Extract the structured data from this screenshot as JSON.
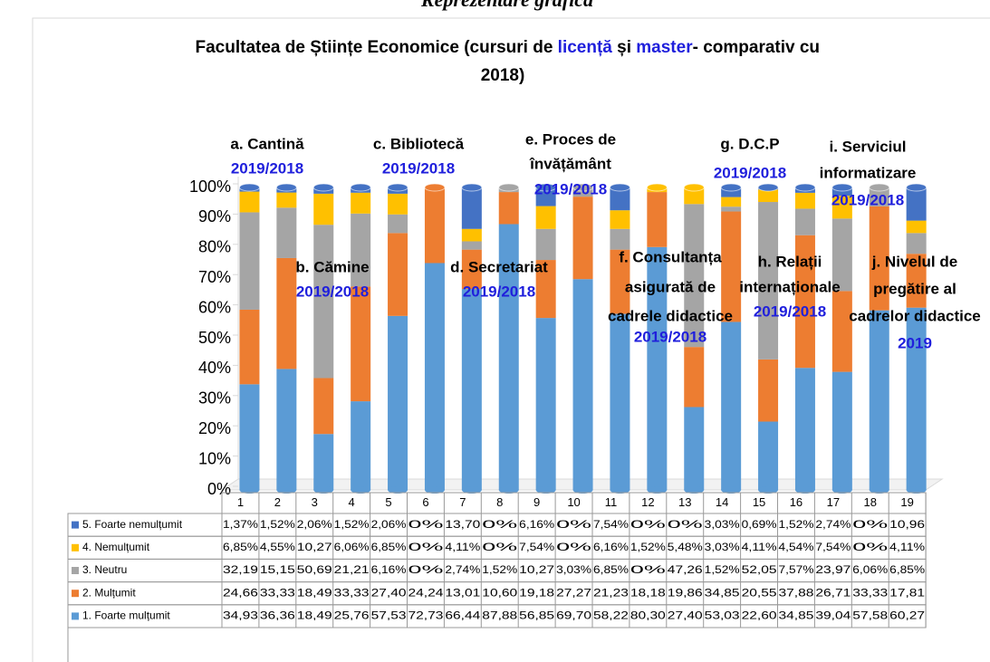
{
  "header": "Reprezentare grafică",
  "chart_data": {
    "type": "bar",
    "stacked": "percent",
    "title": [
      "Facultatea de Științe Economice (cursuri de ",
      "licență",
      " și ",
      "master",
      "- comparativ cu",
      "2018)"
    ],
    "categories": [
      "1",
      "2",
      "3",
      "4",
      "5",
      "6",
      "7",
      "8",
      "9",
      "10",
      "11",
      "12",
      "13",
      "14",
      "15",
      "16",
      "17",
      "18",
      "19"
    ],
    "ylim": [
      0,
      100
    ],
    "yticks": [
      {
        "value": 0,
        "label": "0%"
      },
      {
        "value": 10,
        "label": "10%"
      },
      {
        "value": 20,
        "label": "20%"
      },
      {
        "value": 30,
        "label": "30%"
      },
      {
        "value": 40,
        "label": "40%"
      },
      {
        "value": 50,
        "label": "50%"
      },
      {
        "value": 60,
        "label": "60%"
      },
      {
        "value": 70,
        "label": "70%"
      },
      {
        "value": 80,
        "label": "80%"
      },
      {
        "value": 90,
        "label": "90%"
      },
      {
        "value": 100,
        "label": "100%"
      }
    ],
    "series": [
      {
        "name": "1. Foarte mulțumit",
        "color": "#5b9bd5",
        "values": [
          34.93,
          36.36,
          18.49,
          25.76,
          57.53,
          72.73,
          66.44,
          87.88,
          56.85,
          69.7,
          58.22,
          80.3,
          27.4,
          53.03,
          22.6,
          34.85,
          39.04,
          57.58,
          60.27
        ],
        "value_labels": [
          "34,93",
          "36,36",
          "18,49",
          "25,76",
          "57,53",
          "72,73",
          "66,44",
          "87,88",
          "56,85",
          "69,70",
          "58,22",
          "80,30",
          "27,40",
          "53,03",
          "22,60",
          "34,85",
          "39,04",
          "57,58",
          "60,27"
        ]
      },
      {
        "name": "2. Mulțumit",
        "color": "#ed7d31",
        "values": [
          24.66,
          33.33,
          18.49,
          33.33,
          27.4,
          24.24,
          13.01,
          10.6,
          19.18,
          27.27,
          21.23,
          18.18,
          19.86,
          34.85,
          20.55,
          37.88,
          26.71,
          33.33,
          17.81
        ],
        "value_labels": [
          "24,66",
          "33,33",
          "18,49",
          "33,33",
          "27,40",
          "24,24",
          "13,01",
          "10,60",
          "19,18",
          "27,27",
          "21,23",
          "18,18",
          "19,86",
          "34,85",
          "20,55",
          "37,88",
          "26,71",
          "33,33",
          "17,81"
        ]
      },
      {
        "name": "3. Neutru",
        "color": "#a5a5a5",
        "values": [
          32.19,
          15.15,
          50.69,
          21.21,
          6.16,
          0,
          2.74,
          1.52,
          10.27,
          3.03,
          6.85,
          0,
          47.26,
          1.52,
          52.05,
          7.57,
          23.97,
          6.06,
          6.85
        ],
        "value_labels": [
          "32,19",
          "15,15",
          "50,69",
          "21,21",
          "6,16%",
          "0%",
          "2,74%",
          "1,52%",
          "10,27",
          "3,03%",
          "6,85%",
          "0%",
          "47,26",
          "1,52%",
          "52,05",
          "7,57%",
          "23,97",
          "6,06%",
          "6,85%"
        ]
      },
      {
        "name": "4. Nemulțumit",
        "color": "#ffc000",
        "values": [
          6.85,
          4.55,
          10.27,
          6.06,
          6.85,
          0,
          4.11,
          0,
          7.54,
          0,
          6.16,
          1.52,
          5.48,
          3.03,
          4.11,
          4.54,
          7.54,
          0,
          4.11
        ],
        "value_labels": [
          "6,85%",
          "4,55%",
          "10,27",
          "6,06%",
          "6,85%",
          "0%",
          "4,11%",
          "0%",
          "7,54%",
          "0%",
          "6,16%",
          "1,52%",
          "5,48%",
          "3,03%",
          "4,11%",
          "4,54%",
          "7,54%",
          "0%",
          "4,11%"
        ]
      },
      {
        "name": "5. Foarte nemulțumit",
        "color": "#4472c4",
        "values": [
          1.37,
          1.52,
          2.06,
          1.52,
          2.06,
          0,
          13.7,
          0,
          6.16,
          0,
          7.54,
          0,
          0,
          3.03,
          0.69,
          1.52,
          2.74,
          0,
          10.96
        ],
        "value_labels": [
          "1,37%",
          "1,52%",
          "2,06%",
          "1,52%",
          "2,06%",
          "0%",
          "13,70",
          "0%",
          "6,16%",
          "0%",
          "7,54%",
          "0%",
          "0%",
          "3,03%",
          "0,69%",
          "1,52%",
          "2,74%",
          "0%",
          "10,96"
        ]
      }
    ],
    "annotations": [
      {
        "lines": [
          "a. Cantină"
        ],
        "period": "2019/2018"
      },
      {
        "lines": [
          "b. Cămine"
        ],
        "period": "2019/2018"
      },
      {
        "lines": [
          "c. Bibliotecă"
        ],
        "period": "2019/2018"
      },
      {
        "lines": [
          "d. Secretariat"
        ],
        "period": "2019/2018"
      },
      {
        "lines": [
          "e. Proces de",
          "învățământ"
        ],
        "period": "2019/2018"
      },
      {
        "lines": [
          "f. Consultanța",
          "asigurată de",
          "cadrele didactice"
        ],
        "period": "2019/2018"
      },
      {
        "lines": [
          "g. D.C.P"
        ],
        "period": "2019/2018"
      },
      {
        "lines": [
          "h. Relații",
          "internaționale"
        ],
        "period": "2019/2018"
      },
      {
        "lines": [
          "i. Serviciul",
          "informatizare"
        ],
        "period": "2019/2018"
      },
      {
        "lines": [
          "j. Nivelul de",
          "pregătire al",
          "cadrelor didactice"
        ],
        "period": "2019"
      }
    ]
  }
}
